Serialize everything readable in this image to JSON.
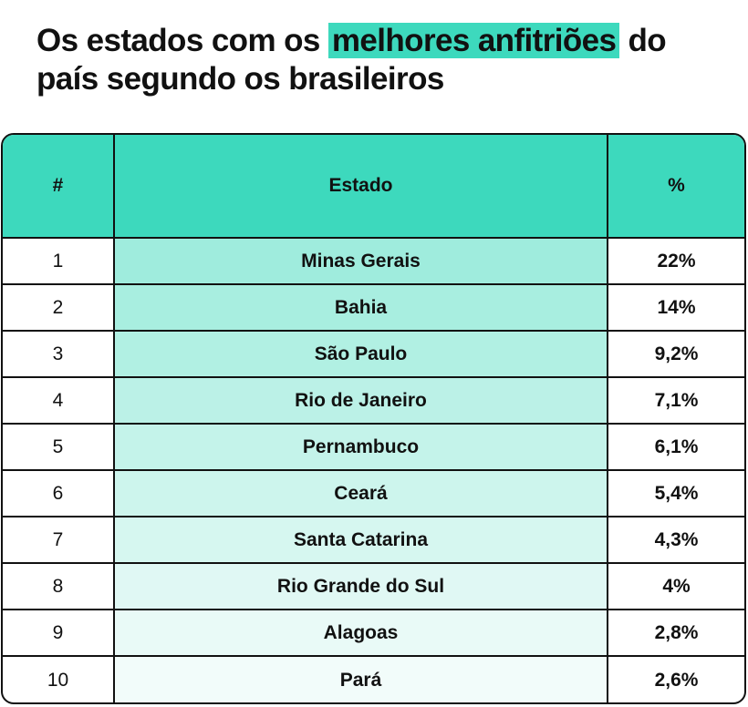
{
  "title": {
    "before": "Os estados com os ",
    "highlight": "melhores anfitriões",
    "after_line1": " do",
    "line2": "país segundo os brasileiros"
  },
  "colors": {
    "accent": "#3dd9bd",
    "row_shade_start": "#9fecdd",
    "row_shade_end": "#f2fcfa"
  },
  "chart_data": {
    "type": "table",
    "columns": [
      "#",
      "Estado",
      "%"
    ],
    "rows": [
      {
        "rank": "1",
        "state": "Minas Gerais",
        "pct_label": "22%",
        "value": 22
      },
      {
        "rank": "2",
        "state": "Bahia",
        "pct_label": "14%",
        "value": 14
      },
      {
        "rank": "3",
        "state": "São Paulo",
        "pct_label": "9,2%",
        "value": 9.2
      },
      {
        "rank": "4",
        "state": "Rio de Janeiro",
        "pct_label": "7,1%",
        "value": 7.1
      },
      {
        "rank": "5",
        "state": "Pernambuco",
        "pct_label": "6,1%",
        "value": 6.1
      },
      {
        "rank": "6",
        "state": "Ceará",
        "pct_label": "5,4%",
        "value": 5.4
      },
      {
        "rank": "7",
        "state": "Santa Catarina",
        "pct_label": "4,3%",
        "value": 4.3
      },
      {
        "rank": "8",
        "state": "Rio Grande do Sul",
        "pct_label": "4%",
        "value": 4
      },
      {
        "rank": "9",
        "state": "Alagoas",
        "pct_label": "2,8%",
        "value": 2.8
      },
      {
        "rank": "10",
        "state": "Pará",
        "pct_label": "2,6%",
        "value": 2.6
      }
    ]
  }
}
